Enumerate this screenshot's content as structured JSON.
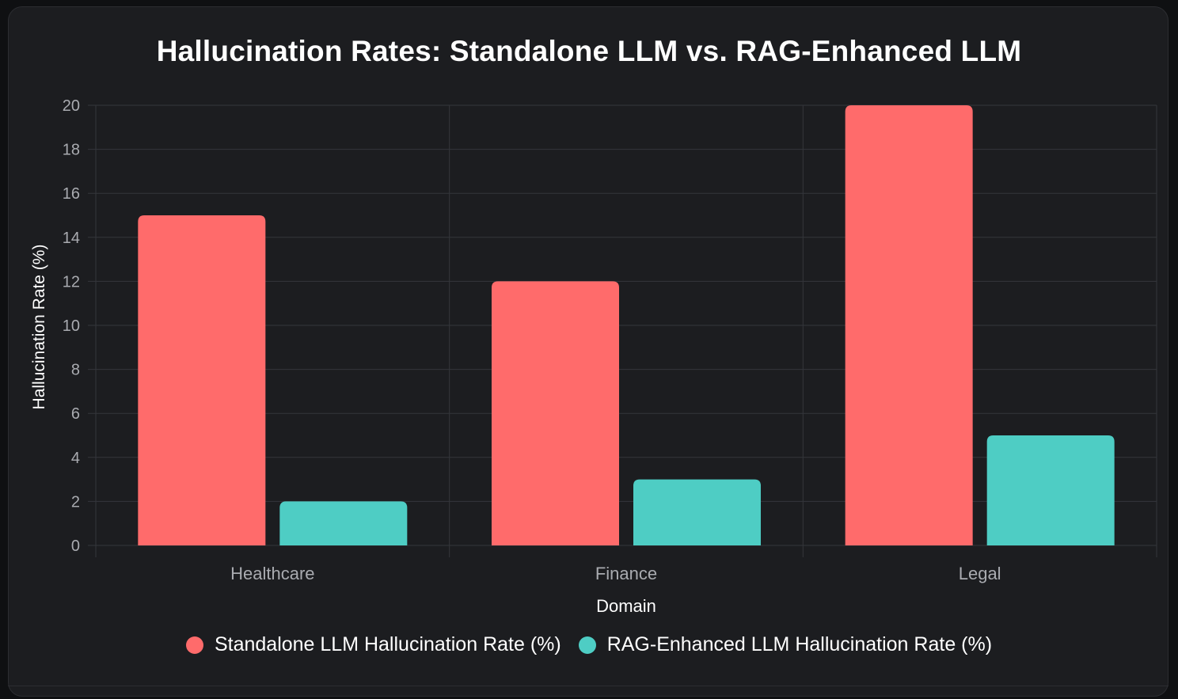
{
  "colors": {
    "standalone": "#ff6b6b",
    "rag": "#4ecdc4",
    "grid": "#34363b",
    "tick_text": "#a9abb0",
    "axis_label": "#ffffff"
  },
  "chart_data": {
    "type": "bar",
    "title": "Hallucination Rates: Standalone LLM vs. RAG-Enhanced LLM",
    "xlabel": "Domain",
    "ylabel": "Hallucination Rate (%)",
    "categories": [
      "Healthcare",
      "Finance",
      "Legal"
    ],
    "series": [
      {
        "name": "Standalone LLM Hallucination Rate (%)",
        "values": [
          15,
          12,
          20
        ]
      },
      {
        "name": "RAG-Enhanced LLM Hallucination Rate (%)",
        "values": [
          2,
          3,
          5
        ]
      }
    ],
    "ylim": [
      0,
      20
    ],
    "yticks": [
      0,
      2,
      4,
      6,
      8,
      10,
      12,
      14,
      16,
      18,
      20
    ],
    "grid": true,
    "legend_position": "bottom"
  }
}
